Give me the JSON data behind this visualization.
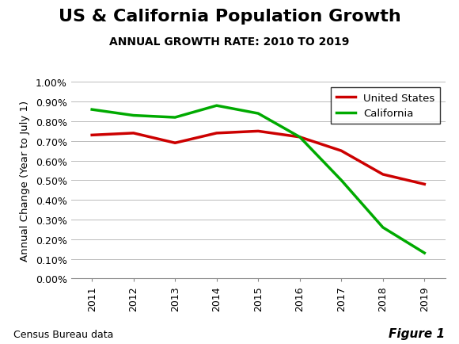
{
  "title": "US & California Population Growth",
  "subtitle": "ANNUAL GROWTH RATE: 2010 TO 2019",
  "ylabel": "Annual Change (Year to July 1)",
  "xlabel": "",
  "years": [
    2011,
    2012,
    2013,
    2014,
    2015,
    2016,
    2017,
    2018,
    2019
  ],
  "us_values": [
    0.0073,
    0.0074,
    0.0069,
    0.0074,
    0.0075,
    0.0072,
    0.0065,
    0.0053,
    0.0048
  ],
  "ca_values": [
    0.0086,
    0.0083,
    0.0082,
    0.0088,
    0.0084,
    0.0072,
    0.005,
    0.0026,
    0.0013
  ],
  "us_color": "#cc0000",
  "ca_color": "#00aa00",
  "line_width": 2.5,
  "ylim": [
    0.0,
    0.01
  ],
  "ytick_step": 0.001,
  "legend_labels": [
    "United States",
    "California"
  ],
  "footnote_left": "Census Bureau data",
  "footnote_right": "Figure 1",
  "background_color": "#ffffff",
  "grid_color": "#bbbbbb",
  "title_fontsize": 16,
  "subtitle_fontsize": 10,
  "ylabel_fontsize": 9.5,
  "tick_fontsize": 9,
  "legend_fontsize": 9.5,
  "footnote_fontsize": 9
}
